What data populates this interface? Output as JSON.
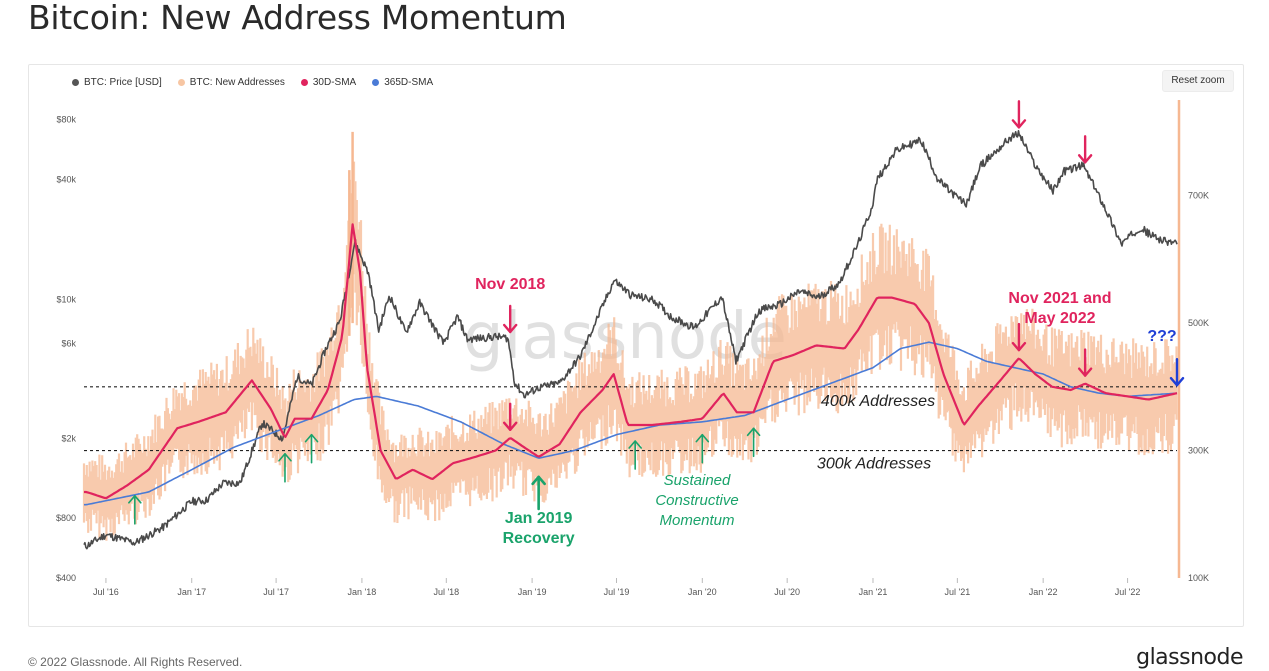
{
  "page": {
    "title": "Bitcoin: New Address Momentum",
    "copyright": "© 2022 Glassnode. All Rights Reserved.",
    "brand": "glassnode",
    "reset_zoom": "Reset zoom",
    "watermark": "glassnode"
  },
  "legend": [
    {
      "label": "BTC: Price [USD]",
      "color": "#555555"
    },
    {
      "label": "BTC: New Addresses",
      "color": "#f7c6a3"
    },
    {
      "label": "30D-SMA",
      "color": "#e0245e"
    },
    {
      "label": "365D-SMA",
      "color": "#4a7bd6"
    }
  ],
  "colors": {
    "price": "#4a4a4a",
    "new_addresses": "#f6b892",
    "sma30": "#e0245e",
    "sma365": "#4a7bd6",
    "annot_red": "#e0245e",
    "annot_green": "#1aa36b",
    "annot_blue": "#1f3fd6"
  },
  "chart_data": {
    "type": "line",
    "x_range": [
      "2016-05-15",
      "2022-10-15"
    ],
    "x_ticks": [
      "Jul '16",
      "Jan '17",
      "Jul '17",
      "Jan '18",
      "Jul '18",
      "Jan '19",
      "Jul '19",
      "Jan '20",
      "Jul '20",
      "Jan '21",
      "Jul '21",
      "Jan '22",
      "Jul '22"
    ],
    "y_left": {
      "scale": "log",
      "range": [
        400,
        100000
      ],
      "ticks": [
        "$400",
        "$800",
        "$2k",
        "$6k",
        "$10k",
        "$40k",
        "$80k"
      ],
      "tick_values": [
        400,
        800,
        2000,
        6000,
        10000,
        40000,
        80000
      ]
    },
    "y_right": {
      "scale": "linear",
      "range": [
        100000,
        850000
      ],
      "ticks": [
        "100K",
        "300K",
        "500K",
        "700K"
      ],
      "tick_values": [
        100000,
        300000,
        500000,
        700000
      ]
    },
    "series": [
      {
        "name": "BTC: Price [USD]",
        "axis": "left",
        "points": [
          [
            "2016-05-20",
            580
          ],
          [
            "2016-07-01",
            660
          ],
          [
            "2016-09-01",
            600
          ],
          [
            "2016-11-01",
            720
          ],
          [
            "2017-01-01",
            970
          ],
          [
            "2017-02-01",
            980
          ],
          [
            "2017-03-10",
            1200
          ],
          [
            "2017-04-15",
            1200
          ],
          [
            "2017-06-01",
            2400
          ],
          [
            "2017-07-15",
            2000
          ],
          [
            "2017-08-15",
            4100
          ],
          [
            "2017-09-15",
            3700
          ],
          [
            "2017-10-15",
            5600
          ],
          [
            "2017-11-15",
            7800
          ],
          [
            "2017-12-17",
            19500
          ],
          [
            "2018-01-15",
            13500
          ],
          [
            "2018-02-06",
            7000
          ],
          [
            "2018-03-01",
            10500
          ],
          [
            "2018-04-05",
            6800
          ],
          [
            "2018-05-05",
            9600
          ],
          [
            "2018-06-25",
            6000
          ],
          [
            "2018-07-25",
            8200
          ],
          [
            "2018-08-15",
            6300
          ],
          [
            "2018-10-15",
            6500
          ],
          [
            "2018-11-10",
            6400
          ],
          [
            "2018-11-25",
            3800
          ],
          [
            "2018-12-15",
            3300
          ],
          [
            "2019-01-15",
            3600
          ],
          [
            "2019-03-01",
            3800
          ],
          [
            "2019-04-15",
            5200
          ],
          [
            "2019-06-26",
            12500
          ],
          [
            "2019-08-01",
            10500
          ],
          [
            "2019-09-20",
            9900
          ],
          [
            "2019-10-25",
            8200
          ],
          [
            "2019-12-15",
            7200
          ],
          [
            "2020-02-12",
            10300
          ],
          [
            "2020-03-13",
            4900
          ],
          [
            "2020-05-01",
            8800
          ],
          [
            "2020-06-15",
            9400
          ],
          [
            "2020-07-28",
            11000
          ],
          [
            "2020-09-05",
            10200
          ],
          [
            "2020-10-20",
            12000
          ],
          [
            "2020-11-30",
            19000
          ],
          [
            "2020-12-30",
            29000
          ],
          [
            "2021-01-10",
            40000
          ],
          [
            "2021-02-20",
            56000
          ],
          [
            "2021-04-14",
            63000
          ],
          [
            "2021-05-20",
            40000
          ],
          [
            "2021-06-20",
            34000
          ],
          [
            "2021-07-20",
            30000
          ],
          [
            "2021-08-20",
            47000
          ],
          [
            "2021-09-06",
            51000
          ],
          [
            "2021-10-20",
            64000
          ],
          [
            "2021-11-10",
            68000
          ],
          [
            "2021-12-15",
            47000
          ],
          [
            "2022-01-22",
            35000
          ],
          [
            "2022-02-15",
            44000
          ],
          [
            "2022-03-28",
            47000
          ],
          [
            "2022-05-10",
            30000
          ],
          [
            "2022-06-18",
            19000
          ],
          [
            "2022-07-28",
            23000
          ],
          [
            "2022-08-20",
            21000
          ],
          [
            "2022-09-20",
            19500
          ],
          [
            "2022-10-15",
            19300
          ]
        ]
      },
      {
        "name": "30D-SMA",
        "axis": "right",
        "points": [
          [
            "2016-05-20",
            235000
          ],
          [
            "2016-07-01",
            225000
          ],
          [
            "2016-08-15",
            245000
          ],
          [
            "2016-10-01",
            270000
          ],
          [
            "2016-12-01",
            335000
          ],
          [
            "2017-01-15",
            345000
          ],
          [
            "2017-03-15",
            360000
          ],
          [
            "2017-05-10",
            410000
          ],
          [
            "2017-06-20",
            365000
          ],
          [
            "2017-07-20",
            320000
          ],
          [
            "2017-08-10",
            350000
          ],
          [
            "2017-09-15",
            350000
          ],
          [
            "2017-10-20",
            395000
          ],
          [
            "2017-11-20",
            480000
          ],
          [
            "2017-12-12",
            655000
          ],
          [
            "2017-12-28",
            580000
          ],
          [
            "2018-01-12",
            430000
          ],
          [
            "2018-02-10",
            300000
          ],
          [
            "2018-03-15",
            255000
          ],
          [
            "2018-04-20",
            270000
          ],
          [
            "2018-06-01",
            255000
          ],
          [
            "2018-07-15",
            280000
          ],
          [
            "2018-09-01",
            290000
          ],
          [
            "2018-10-15",
            300000
          ],
          [
            "2018-11-15",
            320000
          ],
          [
            "2018-12-15",
            305000
          ],
          [
            "2019-01-15",
            290000
          ],
          [
            "2019-03-01",
            310000
          ],
          [
            "2019-04-15",
            360000
          ],
          [
            "2019-06-01",
            395000
          ],
          [
            "2019-06-25",
            420000
          ],
          [
            "2019-07-25",
            340000
          ],
          [
            "2019-09-15",
            340000
          ],
          [
            "2019-11-15",
            345000
          ],
          [
            "2020-01-01",
            350000
          ],
          [
            "2020-02-15",
            390000
          ],
          [
            "2020-03-15",
            360000
          ],
          [
            "2020-04-20",
            360000
          ],
          [
            "2020-06-01",
            440000
          ],
          [
            "2020-07-15",
            450000
          ],
          [
            "2020-09-01",
            465000
          ],
          [
            "2020-11-01",
            460000
          ],
          [
            "2020-12-01",
            490000
          ],
          [
            "2021-01-10",
            540000
          ],
          [
            "2021-02-10",
            540000
          ],
          [
            "2021-04-01",
            530000
          ],
          [
            "2021-05-01",
            500000
          ],
          [
            "2021-06-01",
            420000
          ],
          [
            "2021-07-15",
            340000
          ],
          [
            "2021-08-15",
            370000
          ],
          [
            "2021-10-01",
            410000
          ],
          [
            "2021-11-10",
            445000
          ],
          [
            "2021-12-15",
            420000
          ],
          [
            "2022-01-20",
            400000
          ],
          [
            "2022-03-01",
            395000
          ],
          [
            "2022-04-01",
            405000
          ],
          [
            "2022-05-15",
            390000
          ],
          [
            "2022-07-01",
            385000
          ],
          [
            "2022-08-15",
            380000
          ],
          [
            "2022-10-15",
            390000
          ]
        ]
      },
      {
        "name": "365D-SMA",
        "axis": "right",
        "points": [
          [
            "2016-05-20",
            215000
          ],
          [
            "2016-10-01",
            235000
          ],
          [
            "2017-01-01",
            270000
          ],
          [
            "2017-04-01",
            305000
          ],
          [
            "2017-07-01",
            330000
          ],
          [
            "2017-10-01",
            355000
          ],
          [
            "2017-12-15",
            380000
          ],
          [
            "2018-02-01",
            385000
          ],
          [
            "2018-05-01",
            370000
          ],
          [
            "2018-08-01",
            345000
          ],
          [
            "2018-11-01",
            310000
          ],
          [
            "2019-01-15",
            288000
          ],
          [
            "2019-04-01",
            300000
          ],
          [
            "2019-07-01",
            325000
          ],
          [
            "2019-10-01",
            340000
          ],
          [
            "2020-01-01",
            345000
          ],
          [
            "2020-04-01",
            355000
          ],
          [
            "2020-07-01",
            380000
          ],
          [
            "2020-10-01",
            405000
          ],
          [
            "2021-01-01",
            430000
          ],
          [
            "2021-03-01",
            460000
          ],
          [
            "2021-05-01",
            470000
          ],
          [
            "2021-07-01",
            460000
          ],
          [
            "2021-09-01",
            440000
          ],
          [
            "2021-11-01",
            430000
          ],
          [
            "2022-01-01",
            420000
          ],
          [
            "2022-03-01",
            400000
          ],
          [
            "2022-05-01",
            390000
          ],
          [
            "2022-07-01",
            385000
          ],
          [
            "2022-10-15",
            390000
          ]
        ]
      },
      {
        "name": "BTC: New Addresses",
        "axis": "right",
        "note": "raw daily series, rendered as dense band around the 30D-SMA"
      }
    ],
    "reference_lines": [
      {
        "value": 400000,
        "label": "400k Addresses"
      },
      {
        "value": 300000,
        "label": "300k Addresses"
      }
    ],
    "annotations": [
      {
        "text": "Nov 2018",
        "color": "red"
      },
      {
        "text": "Nov 2021 and",
        "text2": "May 2022",
        "color": "red"
      },
      {
        "text": "???",
        "color": "blue"
      },
      {
        "text": "Jan 2019",
        "text2": "Recovery",
        "color": "green"
      },
      {
        "text": "Sustained",
        "text2": "Constructive",
        "text3": "Momentum",
        "color": "green"
      }
    ],
    "arrows": [
      {
        "date": "2016-09-01",
        "dir": "up",
        "color": "green"
      },
      {
        "date": "2017-07-20",
        "dir": "up",
        "color": "green"
      },
      {
        "date": "2017-09-15",
        "dir": "up",
        "color": "green"
      },
      {
        "date": "2019-01-15",
        "dir": "up",
        "color": "green",
        "big": true
      },
      {
        "date": "2019-08-10",
        "dir": "up",
        "color": "green"
      },
      {
        "date": "2020-01-01",
        "dir": "up",
        "color": "green"
      },
      {
        "date": "2020-04-20",
        "dir": "up",
        "color": "green"
      },
      {
        "date": "2018-11-15",
        "dir": "down",
        "color": "red",
        "anchor": "sma"
      },
      {
        "date": "2021-11-10",
        "dir": "down",
        "color": "red",
        "anchor": "price"
      },
      {
        "date": "2022-04-01",
        "dir": "down",
        "color": "red",
        "anchor": "price"
      },
      {
        "date": "2021-11-10",
        "dir": "down",
        "color": "red",
        "anchor": "sma"
      },
      {
        "date": "2022-04-01",
        "dir": "down",
        "color": "red",
        "anchor": "sma"
      },
      {
        "date": "2018-11-15",
        "dir": "down",
        "color": "red",
        "anchor": "label"
      },
      {
        "date": "2022-10-15",
        "dir": "down",
        "color": "blue",
        "anchor": "sma"
      }
    ]
  }
}
